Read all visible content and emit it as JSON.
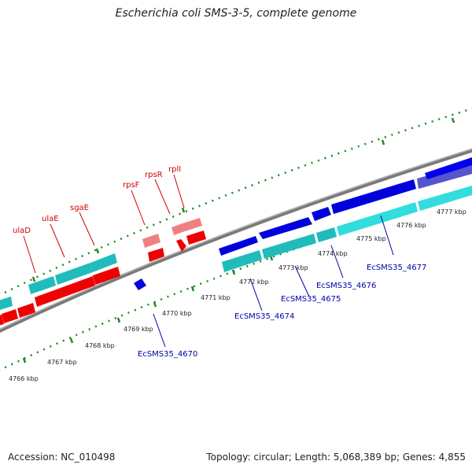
{
  "title": "Escherichia coli SMS-3-5, complete genome",
  "footer": {
    "accession": "Accession: NC_010498",
    "summary": "Topology: circular; Length: 5,068,389 bp; Genes: 4,855"
  },
  "ruler": [
    "4766 kbp",
    "4767 kbp",
    "4768 kbp",
    "4769 kbp",
    "4770 kbp",
    "4771 kbp",
    "4772 kbp",
    "4773 kbp",
    "4774 kbp",
    "4775 kbp",
    "4776 kbp",
    "4777 kbp"
  ],
  "genes_top": [
    "ulaD",
    "ulaE",
    "sgaE",
    "rpsF",
    "rpsR",
    "rplI"
  ],
  "genes_bottom": [
    "EcSMS35_4670",
    "EcSMS35_4674",
    "EcSMS35_4675",
    "EcSMS35_4676",
    "EcSMS35_4677"
  ],
  "colors": {
    "forward_cds": "#0000ee",
    "forward_other": "#00dddd",
    "reverse_cds": "#ee0000",
    "reverse_pseudo": "#f08080",
    "reverse_other": "#22bbbb",
    "backbone": "#888888",
    "scale_ticks": "#228822"
  }
}
